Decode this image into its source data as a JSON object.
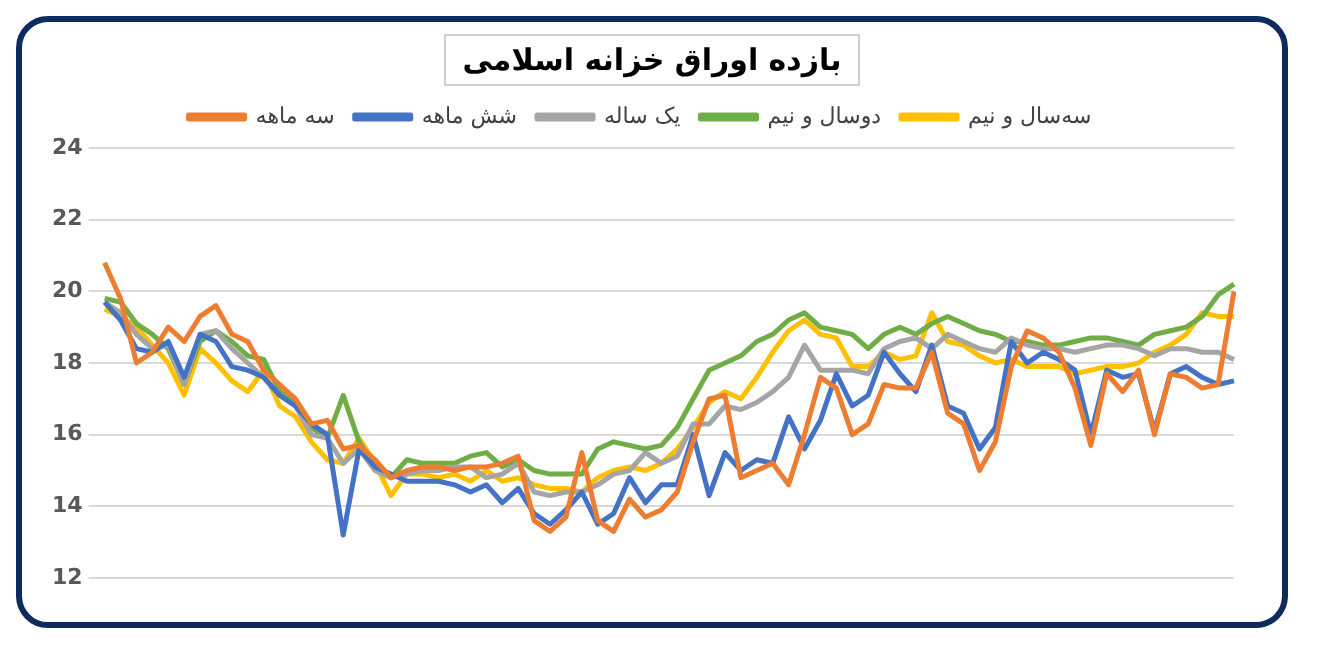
{
  "chart_data": {
    "type": "line",
    "title": "بازده اوراق خزانه اسلامی",
    "categories": [
      null,
      null,
      null,
      null,
      null,
      null,
      null,
      null,
      null,
      null,
      null,
      null,
      null,
      null,
      null,
      null,
      null,
      null,
      null,
      null,
      null,
      null,
      null,
      null,
      null,
      null,
      null,
      null,
      null,
      null,
      null,
      null,
      null,
      null,
      null,
      null,
      null,
      null,
      null,
      null,
      null,
      null,
      null,
      null,
      null,
      null,
      null,
      null,
      null,
      null,
      null,
      null,
      null,
      null,
      null,
      null,
      null,
      null,
      null,
      null,
      null,
      null,
      null,
      null,
      null,
      null,
      null,
      null,
      null,
      null,
      null,
      null
    ],
    "series": [
      {
        "name": "سه ماهه",
        "color": "#ed7d31",
        "values": [
          20.8,
          19.8,
          18.0,
          18.3,
          19.0,
          18.6,
          19.3,
          19.6,
          18.8,
          18.6,
          17.8,
          17.4,
          17.0,
          16.3,
          16.4,
          15.6,
          15.7,
          15.3,
          14.8,
          15.0,
          15.1,
          15.1,
          15.0,
          15.1,
          15.1,
          15.2,
          15.4,
          13.6,
          13.3,
          13.7,
          15.5,
          13.6,
          13.3,
          14.2,
          13.7,
          13.9,
          14.4,
          15.8,
          17.0,
          17.1,
          14.8,
          15.0,
          15.2,
          14.6,
          16.0,
          17.6,
          17.3,
          16.0,
          16.3,
          17.4,
          17.3,
          17.3,
          18.3,
          16.6,
          16.3,
          15.0,
          15.8,
          17.9,
          18.9,
          18.7,
          18.3,
          17.3,
          15.7,
          17.7,
          17.2,
          17.8,
          16.0,
          17.7,
          17.6,
          17.3,
          17.4,
          20.0
        ]
      },
      {
        "name": "شش ماهه",
        "color": "#4472c4",
        "values": [
          19.7,
          19.2,
          18.4,
          18.3,
          18.6,
          17.6,
          18.8,
          18.6,
          17.9,
          17.8,
          17.6,
          17.1,
          16.8,
          16.3,
          16.0,
          13.2,
          15.6,
          15.1,
          14.9,
          14.7,
          14.7,
          14.7,
          14.6,
          14.4,
          14.6,
          14.1,
          14.5,
          13.8,
          13.5,
          13.9,
          14.4,
          13.5,
          13.8,
          14.8,
          14.1,
          14.6,
          14.6,
          16.0,
          14.3,
          15.5,
          15.0,
          15.3,
          15.2,
          16.5,
          15.6,
          16.4,
          17.7,
          16.8,
          17.1,
          18.3,
          17.7,
          17.2,
          18.5,
          16.8,
          16.6,
          15.6,
          16.2,
          18.6,
          18.0,
          18.3,
          18.1,
          17.8,
          16.0,
          17.8,
          17.6,
          17.7,
          16.1,
          17.7,
          17.9,
          17.6,
          17.4,
          17.5
        ]
      },
      {
        "name": "یک ساله",
        "color": "#a5a5a5",
        "values": [
          19.7,
          19.4,
          18.8,
          18.4,
          18.5,
          17.4,
          18.8,
          18.9,
          18.4,
          18.0,
          17.6,
          17.1,
          16.8,
          16.0,
          15.9,
          15.2,
          15.6,
          15.0,
          14.8,
          14.9,
          15.0,
          15.0,
          15.1,
          15.1,
          14.8,
          14.9,
          15.2,
          14.4,
          14.3,
          14.4,
          14.4,
          14.6,
          14.9,
          15.0,
          15.5,
          15.2,
          15.4,
          16.3,
          16.3,
          16.8,
          16.7,
          16.9,
          17.2,
          17.6,
          18.5,
          17.8,
          17.8,
          17.8,
          17.7,
          18.4,
          18.6,
          18.7,
          18.4,
          18.8,
          18.6,
          18.4,
          18.3,
          18.7,
          18.5,
          18.4,
          18.4,
          18.3,
          18.4,
          18.5,
          18.5,
          18.4,
          18.2,
          18.4,
          18.4,
          18.3,
          18.3,
          18.1
        ]
      },
      {
        "name": "دوسال و نیم",
        "color": "#70ad47",
        "values": [
          19.8,
          19.7,
          19.1,
          18.8,
          18.4,
          17.4,
          18.6,
          18.9,
          18.6,
          18.2,
          18.1,
          17.2,
          16.9,
          16.2,
          15.9,
          17.1,
          15.8,
          15.1,
          14.8,
          15.3,
          15.2,
          15.2,
          15.2,
          15.4,
          15.5,
          15.1,
          15.3,
          15.0,
          14.9,
          14.9,
          14.9,
          15.6,
          15.8,
          15.7,
          15.6,
          15.7,
          16.2,
          17.0,
          17.8,
          18.0,
          18.2,
          18.6,
          18.8,
          19.2,
          19.4,
          19.0,
          18.9,
          18.8,
          18.4,
          18.8,
          19.0,
          18.8,
          19.1,
          19.3,
          19.1,
          18.9,
          18.8,
          18.6,
          18.6,
          18.5,
          18.5,
          18.6,
          18.7,
          18.7,
          18.6,
          18.5,
          18.8,
          18.9,
          19.0,
          19.3,
          19.9,
          20.2
        ]
      },
      {
        "name": "سه‌سال و نیم",
        "color": "#ffc000",
        "values": [
          19.5,
          19.3,
          19.0,
          18.5,
          18.0,
          17.1,
          18.4,
          18.0,
          17.5,
          17.2,
          17.8,
          16.8,
          16.5,
          15.8,
          15.3,
          15.2,
          15.9,
          15.2,
          14.3,
          14.9,
          14.9,
          14.8,
          14.9,
          14.7,
          15.0,
          14.7,
          14.8,
          14.6,
          14.5,
          14.5,
          14.4,
          14.8,
          15.0,
          15.1,
          15.0,
          15.2,
          15.6,
          16.2,
          16.9,
          17.2,
          17.0,
          17.6,
          18.3,
          18.9,
          19.2,
          18.8,
          18.7,
          17.9,
          17.9,
          18.3,
          18.1,
          18.2,
          19.4,
          18.6,
          18.5,
          18.2,
          18.0,
          18.1,
          17.9,
          17.9,
          17.9,
          17.7,
          17.8,
          17.9,
          17.9,
          18.0,
          18.3,
          18.5,
          18.8,
          19.4,
          19.3,
          19.3
        ]
      }
    ],
    "ylim": [
      12,
      24
    ],
    "yticks": [
      12,
      14,
      16,
      18,
      20,
      22,
      24
    ],
    "grid": "y",
    "legend": "top"
  }
}
